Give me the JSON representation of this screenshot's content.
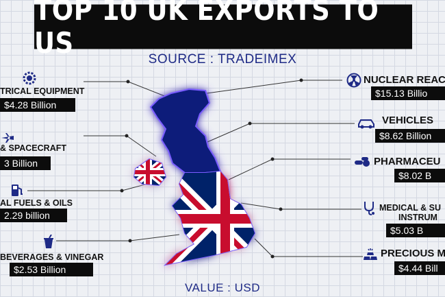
{
  "title": "TOP 10 UK EXPORTS TO US",
  "source": "SOURCE : TRADEIMEX",
  "unit_note": "VALUE : USD",
  "chart_data": {
    "type": "table",
    "title": "TOP 10 UK EXPORTS TO US",
    "rows": [
      {
        "category": "TRICAL EQUIPMENT",
        "value_text": "$4.28 Billion",
        "value": 4.28,
        "icon": "gear-icon"
      },
      {
        "category": "& SPACECRAFT",
        "value_text": "3 Billion",
        "value": null,
        "icon": "airplane-icon"
      },
      {
        "category": "AL FUELS & OILS",
        "value_text": "2.29 billion",
        "value": 2.29,
        "icon": "fuel-pump-icon"
      },
      {
        "category": "BEVERAGES & VINEGAR",
        "value_text": "$2.53 Billion",
        "value": 2.53,
        "icon": "drink-cup-icon"
      },
      {
        "category": "NUCLEAR REAC",
        "value_text": "$15.13 Billio",
        "value": 15.13,
        "icon": "atom-icon"
      },
      {
        "category": "VEHICLES",
        "value_text": "$8.62 Billion",
        "value": 8.62,
        "icon": "car-icon"
      },
      {
        "category": "PHARMACEU",
        "value_text": "$8.02 B",
        "value": 8.02,
        "icon": "pills-icon"
      },
      {
        "category": "MEDICAL & SU",
        "category_line2": "INSTRUM",
        "value_text": "$5.03 B",
        "value": 5.03,
        "icon": "stethoscope-icon"
      },
      {
        "category": "PRECIOUS M",
        "value_text": "$4.44 Bill",
        "value": 4.44,
        "icon": "gold-bars-icon"
      }
    ]
  },
  "colors": {
    "title_bg": "#0c0c0c",
    "accent_blue": "#1e2a86",
    "flag_red": "#c8102e",
    "flag_blue": "#012169",
    "glow": "#6a4cff"
  }
}
